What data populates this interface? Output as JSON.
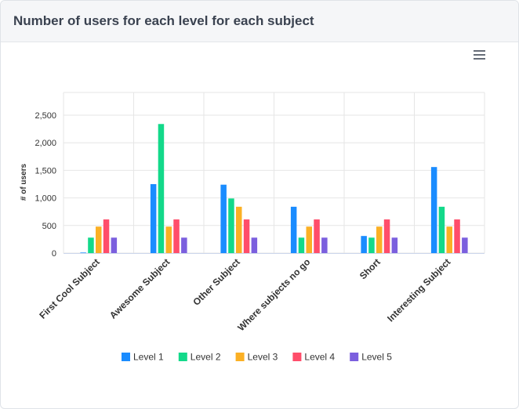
{
  "card": {
    "title": "Number of users for each level for each subject",
    "menu_icon": "hamburger-menu-icon"
  },
  "chart_data": {
    "type": "bar",
    "title": "",
    "xlabel": "",
    "ylabel": "# of users",
    "ylim": [
      0,
      2500
    ],
    "yticks": [
      0,
      500,
      1000,
      1500,
      2000,
      2500
    ],
    "ytick_labels": [
      "0",
      "500",
      "1,000",
      "1,500",
      "2,000",
      "2,500"
    ],
    "grid": true,
    "legend_position": "bottom",
    "categories": [
      "First Cool Subject",
      "Awesome Subject",
      "Other Subject",
      "Where subjects no go",
      "Short",
      "Interesting Subject"
    ],
    "series": [
      {
        "name": "Level 1",
        "color": "#1a8cff",
        "values": [
          10,
          1250,
          1240,
          840,
          310,
          1560
        ]
      },
      {
        "name": "Level 2",
        "color": "#13d98a",
        "values": [
          280,
          2340,
          990,
          280,
          280,
          840
        ]
      },
      {
        "name": "Level 3",
        "color": "#fbb024",
        "values": [
          480,
          480,
          840,
          480,
          480,
          480
        ]
      },
      {
        "name": "Level 4",
        "color": "#ff4d6a",
        "values": [
          610,
          610,
          610,
          610,
          610,
          610
        ]
      },
      {
        "name": "Level 5",
        "color": "#7b5fde",
        "values": [
          280,
          280,
          280,
          280,
          280,
          280
        ]
      }
    ]
  }
}
